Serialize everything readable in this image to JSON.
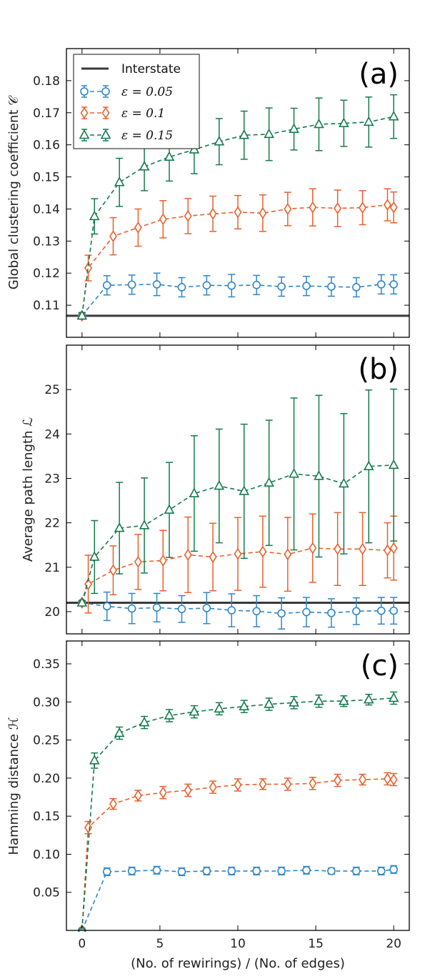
{
  "colors": {
    "eps005": "#2e86c8",
    "eps01": "#e8602c",
    "eps015": "#167a4d",
    "interstate": "#3a3a3a",
    "frame": "#000000"
  },
  "legend": {
    "placement": "top-left of panel (a)",
    "entries": [
      {
        "label": "Interstate",
        "key": "interstate",
        "marker": "line"
      },
      {
        "label": "ε = 0.05",
        "key": "eps005",
        "marker": "circle"
      },
      {
        "label": "ε = 0.1",
        "key": "eps01",
        "marker": "diamond"
      },
      {
        "label": "ε = 0.15",
        "key": "eps015",
        "marker": "triangle"
      }
    ]
  },
  "shared_x": {
    "label": "(No. of rewirings) / (No. of edges)",
    "ticks": [
      0,
      5,
      10,
      15,
      20
    ],
    "xlim": [
      -1,
      21
    ]
  },
  "chart_data": [
    {
      "type": "line",
      "panel": "(a)",
      "ylabel": "Global clustering coefficient 𝒞",
      "ylim": [
        0.1,
        0.19
      ],
      "yticks": [
        0.11,
        0.12,
        0.13,
        0.14,
        0.15,
        0.16,
        0.17,
        0.18
      ],
      "ytick_labels": [
        "0.11",
        "0.12",
        "0.13",
        "0.14",
        "0.15",
        "0.16",
        "0.17",
        "0.18"
      ],
      "reference_line": {
        "name": "Interstate",
        "y": 0.1067
      },
      "series": [
        {
          "name": "ε = 0.05",
          "key": "eps005",
          "marker": "circle",
          "x": [
            0,
            1.6,
            3.2,
            4.8,
            6.4,
            8.0,
            9.6,
            11.2,
            12.8,
            14.4,
            16.0,
            17.6,
            19.2,
            20.0
          ],
          "y": [
            0.1067,
            0.1162,
            0.1164,
            0.1165,
            0.1156,
            0.1162,
            0.1161,
            0.1163,
            0.1158,
            0.116,
            0.1158,
            0.1156,
            0.1165,
            0.1165
          ],
          "err": [
            0.001,
            0.003,
            0.003,
            0.0035,
            0.003,
            0.003,
            0.0035,
            0.003,
            0.003,
            0.003,
            0.003,
            0.003,
            0.003,
            0.003
          ]
        },
        {
          "name": "ε = 0.1",
          "key": "eps01",
          "marker": "diamond",
          "x": [
            0,
            0.4,
            2.0,
            3.6,
            5.2,
            6.8,
            8.4,
            10.0,
            11.6,
            13.2,
            14.8,
            16.4,
            18.0,
            19.6,
            20.0
          ],
          "y": [
            0.1067,
            0.1216,
            0.1315,
            0.1342,
            0.1368,
            0.1378,
            0.1385,
            0.139,
            0.1387,
            0.14,
            0.1405,
            0.1402,
            0.1404,
            0.1413,
            0.1405
          ],
          "err": [
            0.001,
            0.004,
            0.0058,
            0.0058,
            0.0058,
            0.0055,
            0.0055,
            0.0052,
            0.0057,
            0.0052,
            0.0058,
            0.0057,
            0.0053,
            0.005,
            0.0048
          ]
        },
        {
          "name": "ε = 0.15",
          "key": "eps015",
          "marker": "triangle",
          "x": [
            0,
            0.8,
            2.4,
            4.0,
            5.6,
            7.2,
            8.8,
            10.4,
            12.0,
            13.6,
            15.2,
            16.8,
            18.4,
            20.0
          ],
          "y": [
            0.1067,
            0.1377,
            0.1483,
            0.1532,
            0.1562,
            0.1585,
            0.161,
            0.163,
            0.1633,
            0.1649,
            0.1664,
            0.1667,
            0.1671,
            0.1688
          ],
          "err": [
            0.001,
            0.0055,
            0.0075,
            0.0075,
            0.0075,
            0.0075,
            0.0072,
            0.0075,
            0.0082,
            0.0065,
            0.0082,
            0.0072,
            0.0078,
            0.0068
          ]
        }
      ]
    },
    {
      "type": "line",
      "panel": "(b)",
      "ylabel": "Average path length ℒ",
      "ylim": [
        19.5,
        26.0
      ],
      "yticks": [
        20,
        21,
        22,
        23,
        24,
        25
      ],
      "ytick_labels": [
        "20",
        "21",
        "22",
        "23",
        "24",
        "25"
      ],
      "reference_line": {
        "name": "Interstate",
        "y": 20.2
      },
      "series": [
        {
          "name": "ε = 0.05",
          "key": "eps005",
          "marker": "circle",
          "x": [
            0,
            1.6,
            3.2,
            4.8,
            6.4,
            8.0,
            9.6,
            11.2,
            12.8,
            14.4,
            16.0,
            17.6,
            19.2,
            20.0
          ],
          "y": [
            20.2,
            20.12,
            20.07,
            20.09,
            20.06,
            20.08,
            20.03,
            20.01,
            19.96,
            19.99,
            19.97,
            20.01,
            20.02,
            20.02
          ],
          "err": [
            0.05,
            0.32,
            0.34,
            0.32,
            0.3,
            0.35,
            0.37,
            0.35,
            0.35,
            0.33,
            0.32,
            0.3,
            0.3,
            0.3
          ]
        },
        {
          "name": "ε = 0.1",
          "key": "eps01",
          "marker": "diamond",
          "x": [
            0,
            0.4,
            2.0,
            3.6,
            5.2,
            6.8,
            8.4,
            10.0,
            11.6,
            13.2,
            14.8,
            16.4,
            18.0,
            19.6,
            20.0
          ],
          "y": [
            20.2,
            20.62,
            20.93,
            21.12,
            21.15,
            21.28,
            21.23,
            21.3,
            21.35,
            21.29,
            21.43,
            21.41,
            21.41,
            21.38,
            21.43
          ],
          "err": [
            0.05,
            0.65,
            0.55,
            0.62,
            0.68,
            0.85,
            0.76,
            0.82,
            0.8,
            0.83,
            0.77,
            0.82,
            0.82,
            0.62,
            0.72
          ]
        },
        {
          "name": "ε = 0.15",
          "key": "eps015",
          "marker": "triangle",
          "x": [
            0,
            0.8,
            2.4,
            4.0,
            5.6,
            7.2,
            8.8,
            10.4,
            12.0,
            13.6,
            15.2,
            16.8,
            18.4,
            20.0
          ],
          "y": [
            20.2,
            21.23,
            21.88,
            21.94,
            22.29,
            22.66,
            22.83,
            22.71,
            22.9,
            23.1,
            23.05,
            22.88,
            23.27,
            23.3
          ],
          "err": [
            0.05,
            0.82,
            1.03,
            1.07,
            1.07,
            1.3,
            1.28,
            1.51,
            1.41,
            1.71,
            1.82,
            1.58,
            1.72,
            1.71
          ]
        }
      ]
    },
    {
      "type": "line",
      "panel": "(c)",
      "ylabel": "Hamming distance ℋ",
      "ylim": [
        0.0,
        0.38
      ],
      "yticks": [
        0.05,
        0.1,
        0.15,
        0.2,
        0.25,
        0.3,
        0.35
      ],
      "ytick_labels": [
        "0.05",
        "0.10",
        "0.15",
        "0.20",
        "0.25",
        "0.30",
        "0.35"
      ],
      "series": [
        {
          "name": "ε = 0.05",
          "key": "eps005",
          "marker": "circle",
          "x": [
            0,
            1.6,
            3.2,
            4.8,
            6.4,
            8.0,
            9.6,
            11.2,
            12.8,
            14.4,
            16.0,
            17.6,
            19.2,
            20.0
          ],
          "y": [
            0.0,
            0.077,
            0.078,
            0.079,
            0.077,
            0.078,
            0.078,
            0.078,
            0.078,
            0.079,
            0.078,
            0.078,
            0.078,
            0.08
          ],
          "err": [
            0.0,
            0.005,
            0.005,
            0.005,
            0.005,
            0.005,
            0.005,
            0.005,
            0.005,
            0.005,
            0.004,
            0.005,
            0.005,
            0.005
          ]
        },
        {
          "name": "ε = 0.1",
          "key": "eps01",
          "marker": "diamond",
          "x": [
            0,
            0.4,
            2.0,
            3.6,
            5.2,
            6.8,
            8.4,
            10.0,
            11.6,
            13.2,
            14.8,
            16.4,
            18.0,
            19.6,
            20.0
          ],
          "y": [
            0.0,
            0.135,
            0.166,
            0.177,
            0.181,
            0.184,
            0.188,
            0.191,
            0.192,
            0.192,
            0.193,
            0.197,
            0.198,
            0.199,
            0.198
          ],
          "err": [
            0.0,
            0.008,
            0.007,
            0.007,
            0.008,
            0.008,
            0.008,
            0.008,
            0.007,
            0.008,
            0.008,
            0.008,
            0.007,
            0.008,
            0.008
          ]
        },
        {
          "name": "ε = 0.15",
          "key": "eps015",
          "marker": "triangle",
          "x": [
            0,
            0.8,
            2.4,
            4.0,
            5.6,
            7.2,
            8.8,
            10.4,
            12.0,
            13.6,
            15.2,
            16.8,
            18.4,
            20.0
          ],
          "y": [
            0.0,
            0.223,
            0.259,
            0.273,
            0.282,
            0.287,
            0.291,
            0.294,
            0.297,
            0.299,
            0.301,
            0.301,
            0.303,
            0.305
          ],
          "err": [
            0.0,
            0.01,
            0.008,
            0.008,
            0.008,
            0.008,
            0.008,
            0.008,
            0.008,
            0.008,
            0.008,
            0.007,
            0.007,
            0.008
          ]
        }
      ]
    }
  ]
}
